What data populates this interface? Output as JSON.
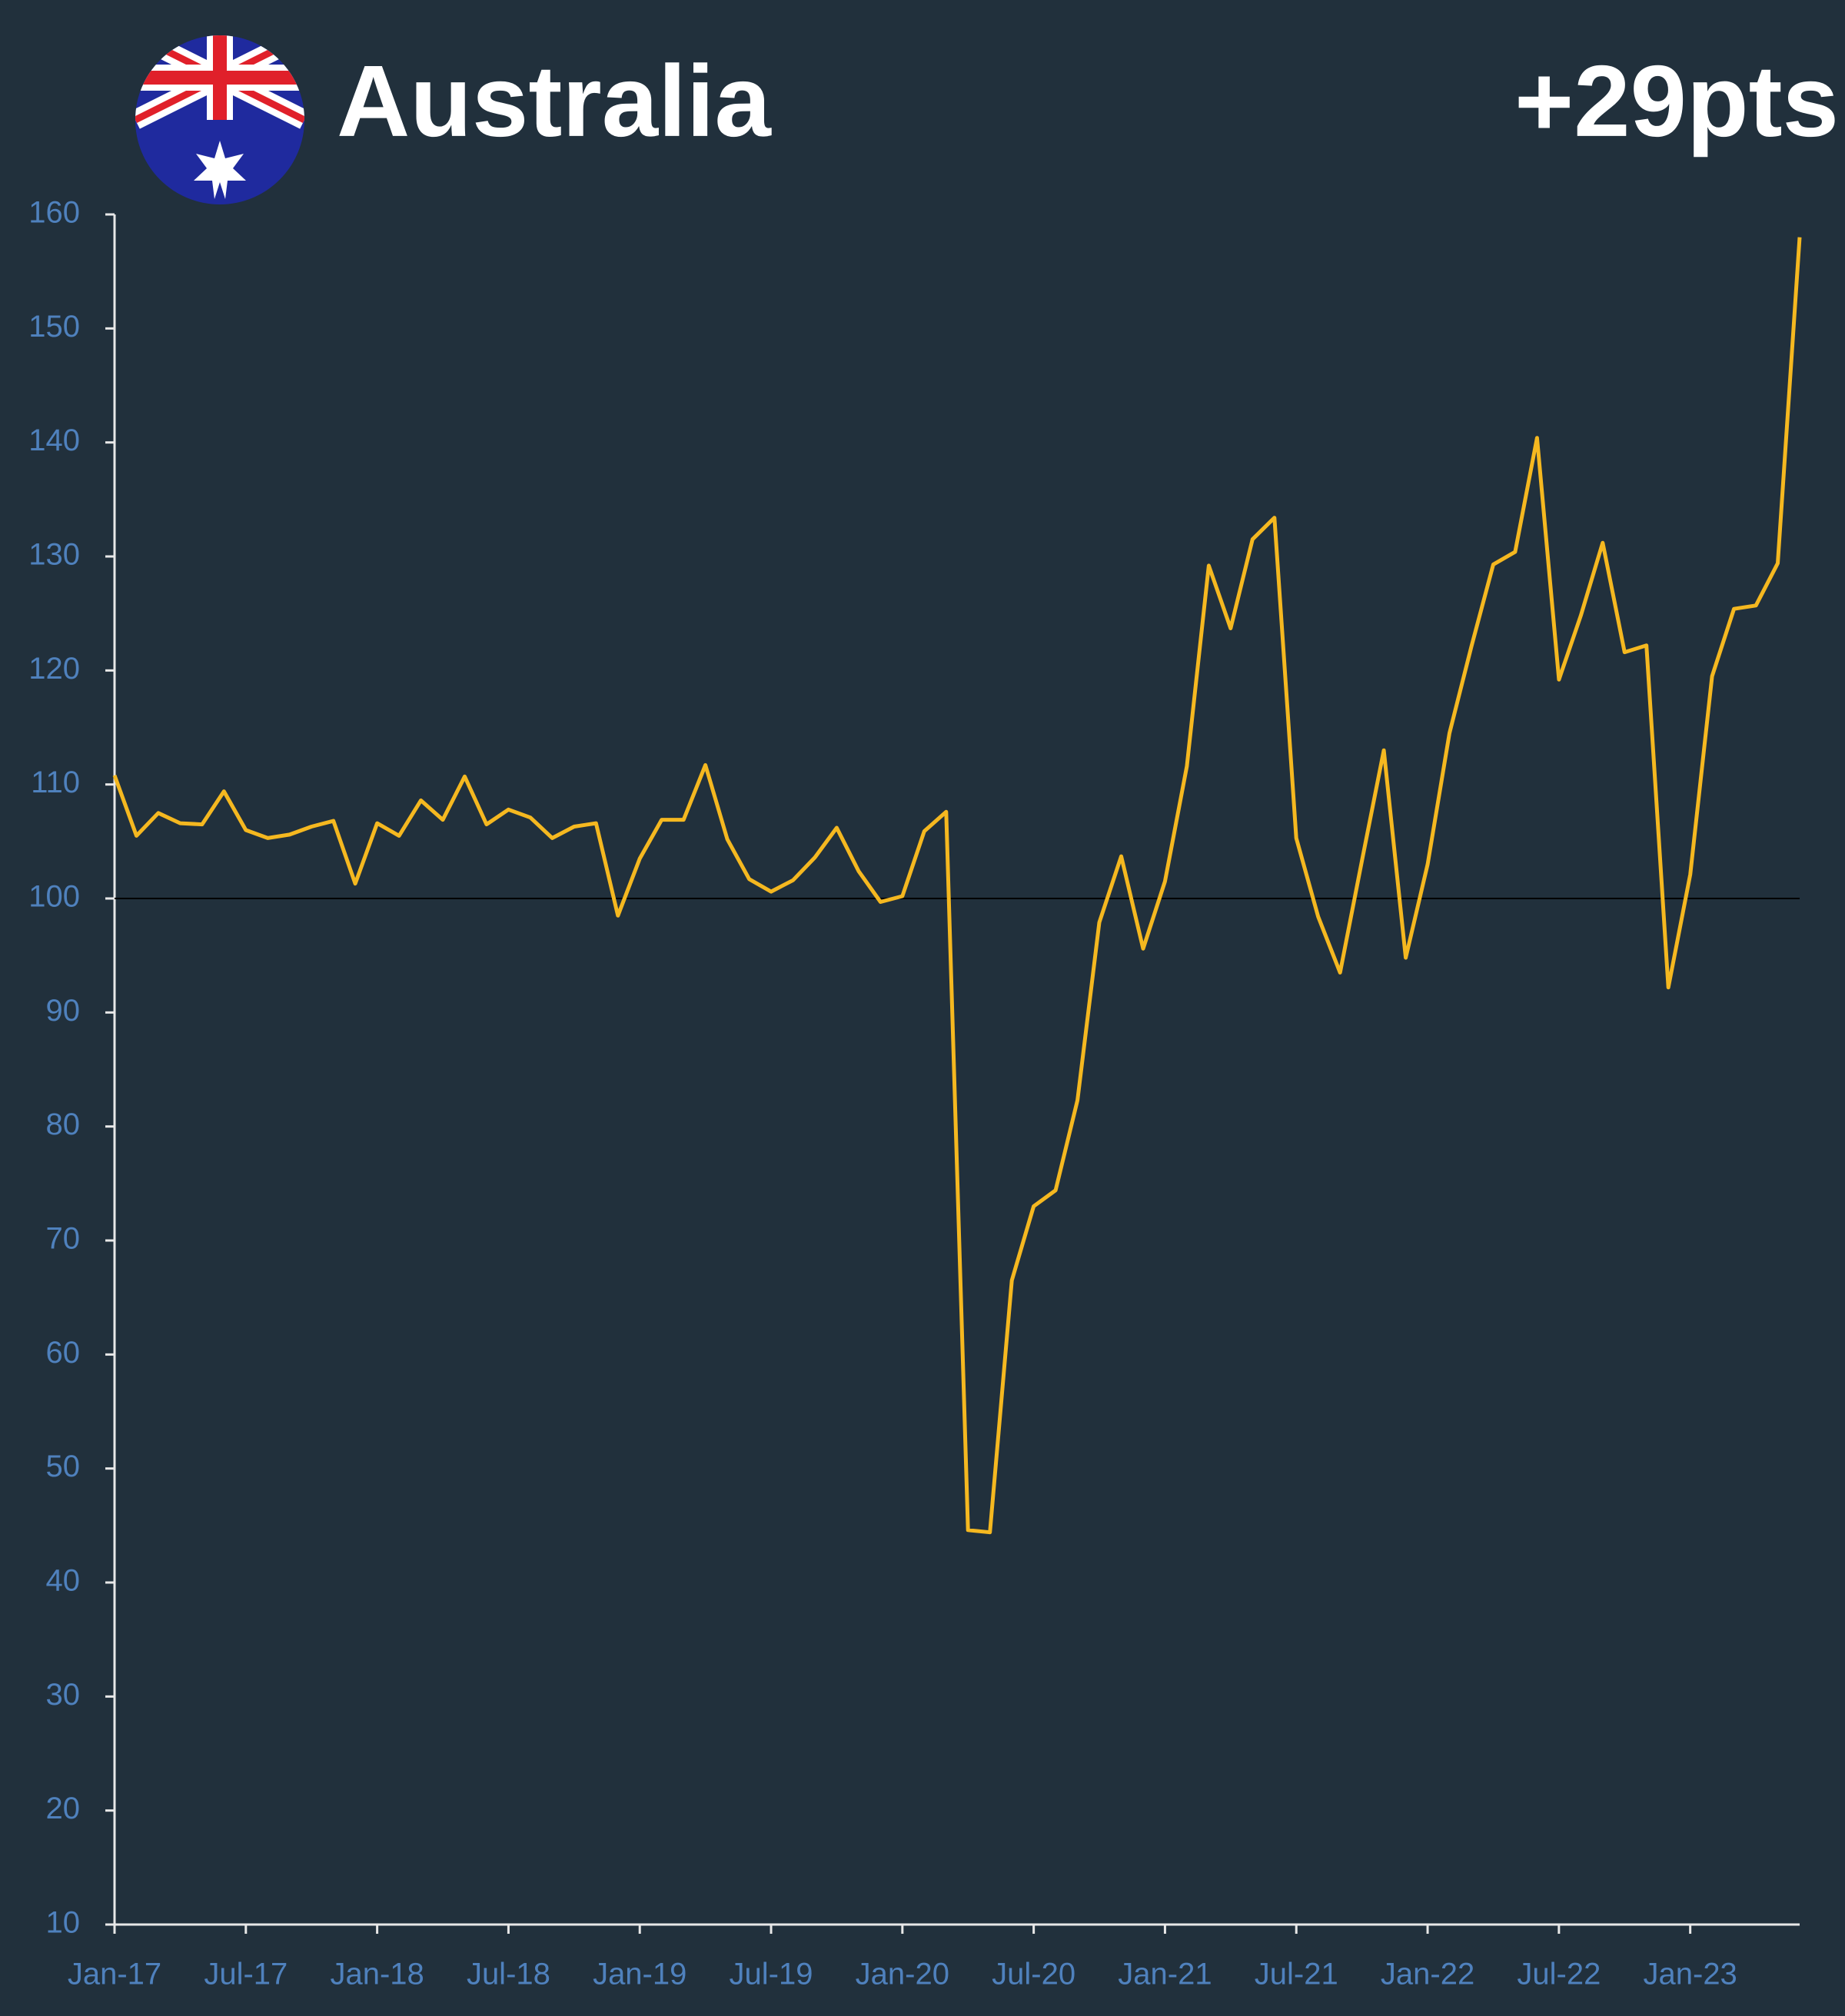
{
  "chart_data": {
    "type": "line",
    "title": "Australia",
    "annotation": "+29pts",
    "categories": [
      "Jan-17",
      null,
      null,
      null,
      null,
      null,
      "Jul-17",
      null,
      null,
      null,
      null,
      null,
      "Jan-18",
      null,
      null,
      null,
      null,
      null,
      "Jul-18",
      null,
      null,
      null,
      null,
      null,
      "Jan-19",
      null,
      null,
      null,
      null,
      null,
      "Jul-19",
      null,
      null,
      null,
      null,
      null,
      "Jan-20",
      null,
      null,
      null,
      null,
      null,
      "Jul-20",
      null,
      null,
      null,
      null,
      null,
      "Jan-21",
      null,
      null,
      null,
      null,
      null,
      "Jul-21",
      null,
      null,
      null,
      null,
      null,
      "Jan-22",
      null,
      null,
      null,
      null,
      null,
      "Jul-22",
      null,
      null,
      null,
      null,
      null,
      "Jan-23",
      null,
      null,
      null,
      null,
      null
    ],
    "values": [
      110.8,
      105.5,
      107.5,
      106.6,
      106.5,
      109.4,
      106,
      105.3,
      105.6,
      106.3,
      106.8,
      101.3,
      106.6,
      105.5,
      108.6,
      106.9,
      110.7,
      106.5,
      107.8,
      107.1,
      105.3,
      106.3,
      106.6,
      98.5,
      103.5,
      106.9,
      106.9,
      111.7,
      105.2,
      101.7,
      100.6,
      101.6,
      103.6,
      106.2,
      102.4,
      99.7,
      100.2,
      105.9,
      107.6,
      44.6,
      44.4,
      66.5,
      73,
      74.4,
      82.3,
      97.9,
      103.7,
      95.6,
      101.5,
      111.6,
      129.2,
      123.7,
      131.5,
      133.4,
      105.3,
      98.4,
      93.5,
      103.3,
      113,
      94.8,
      103,
      114.5,
      122.1,
      129.3,
      130.4,
      140.4,
      119.2,
      124.8,
      131.2,
      121.6,
      122.2,
      92.2,
      102.1,
      119.5,
      125.4,
      125.7,
      129.4,
      158
    ],
    "color": "#f5b820",
    "reference_line": 100,
    "ylim": [
      10,
      160
    ],
    "yticks": [
      10,
      20,
      30,
      40,
      50,
      60,
      70,
      80,
      90,
      100,
      110,
      120,
      130,
      140,
      150,
      160
    ]
  }
}
